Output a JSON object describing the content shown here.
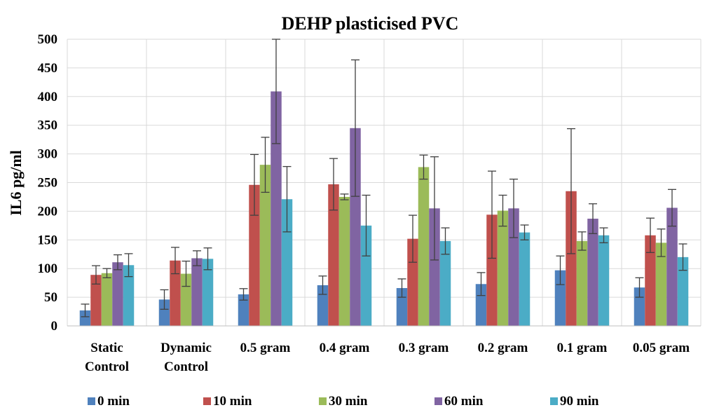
{
  "chart_data": {
    "type": "bar",
    "title": "DEHP plasticised PVC",
    "ylabel": "IL6 pg/ml",
    "xlabel": "",
    "ylim": [
      0,
      500
    ],
    "yticks": [
      0,
      50,
      100,
      150,
      200,
      250,
      300,
      350,
      400,
      450,
      500
    ],
    "grid": true,
    "legend_position": "bottom",
    "categories": [
      [
        "Static",
        "Control"
      ],
      [
        "Dynamic",
        "Control"
      ],
      [
        "0.5 gram"
      ],
      [
        "0.4 gram"
      ],
      [
        "0.3 gram"
      ],
      [
        "0.2 gram"
      ],
      [
        "0.1 gram"
      ],
      [
        "0.05 gram"
      ]
    ],
    "series": [
      {
        "name": "0 min",
        "color": "#4f81bd",
        "values": [
          27,
          46,
          55,
          71,
          66,
          73,
          97,
          67
        ],
        "errors": [
          11,
          17,
          10,
          16,
          16,
          20,
          25,
          17
        ]
      },
      {
        "name": "10 min",
        "color": "#c0504d",
        "values": [
          89,
          114,
          246,
          247,
          152,
          194,
          235,
          158
        ],
        "errors": [
          16,
          23,
          53,
          45,
          41,
          76,
          109,
          30
        ]
      },
      {
        "name": "30 min",
        "color": "#9bbb59",
        "values": [
          92,
          91,
          281,
          225,
          277,
          201,
          148,
          145
        ],
        "errors": [
          8,
          22,
          48,
          5,
          21,
          27,
          16,
          24
        ]
      },
      {
        "name": "60 min",
        "color": "#8064a2",
        "values": [
          111,
          118,
          409,
          345,
          205,
          205,
          187,
          206
        ],
        "errors": [
          13,
          13,
          91,
          119,
          90,
          51,
          26,
          32
        ]
      },
      {
        "name": "90 min",
        "color": "#4bacc6",
        "values": [
          106,
          117,
          221,
          175,
          148,
          163,
          158,
          120
        ],
        "errors": [
          20,
          19,
          57,
          53,
          23,
          13,
          13,
          23
        ]
      }
    ]
  }
}
